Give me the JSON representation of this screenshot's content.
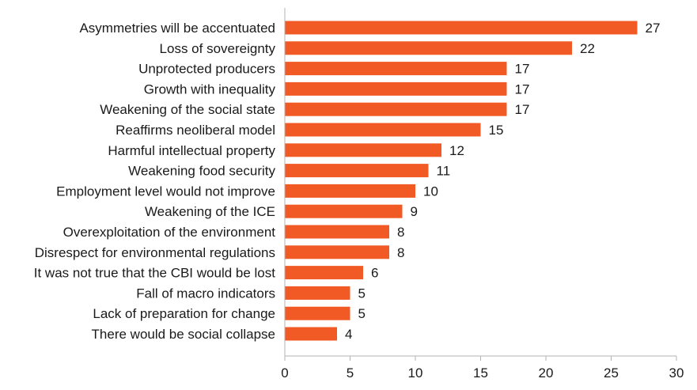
{
  "chart_data": {
    "type": "bar",
    "orientation": "horizontal",
    "title": "",
    "xlabel": "",
    "ylabel": "",
    "categories": [
      "Asymmetries will be accentuated",
      "Loss of sovereignty",
      "Unprotected producers",
      "Growth with inequality",
      "Weakening of the social state",
      "Reaffirms neoliberal model",
      "Harmful intellectual property",
      "Weakening food security",
      "Employment level would not improve",
      "Weakening of the ICE",
      "Overexploitation of the environment",
      "Disrespect for environmental regulations",
      "It was not true that the CBI would be lost",
      "Fall of macro indicators",
      "Lack of preparation for change",
      "There would be social collapse"
    ],
    "values": [
      27,
      22,
      17,
      17,
      17,
      15,
      12,
      11,
      10,
      9,
      8,
      8,
      6,
      5,
      5,
      4
    ],
    "xlim": [
      0,
      30
    ],
    "xticks": [
      0,
      5,
      10,
      15,
      20,
      25,
      30
    ],
    "grid": false,
    "legend": "none",
    "colors": {
      "bar": "#f15a24",
      "axis": "#b3b3b3",
      "text": "#1a1a1a"
    }
  }
}
